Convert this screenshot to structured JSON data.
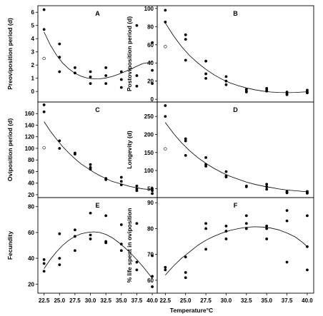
{
  "xlabel": "Temperature°C",
  "chart_data": [
    {
      "type": "scatter",
      "panel": "A",
      "ylabel": "Preoviposition period (d)",
      "xlim": [
        21.5,
        40.8
      ],
      "ylim": [
        -0.8,
        6.5
      ],
      "yticks": [
        0,
        1,
        2,
        3,
        4,
        5,
        6
      ],
      "points": [
        [
          22.5,
          6.2
        ],
        [
          22.5,
          4.7
        ],
        [
          25,
          3.6
        ],
        [
          25,
          2.6
        ],
        [
          25,
          1.5
        ],
        [
          27.5,
          1.8
        ],
        [
          27.5,
          1.4
        ],
        [
          30,
          1.5
        ],
        [
          30,
          1.1
        ],
        [
          30,
          0.6
        ],
        [
          32.5,
          1.8
        ],
        [
          32.5,
          1.2
        ],
        [
          32.5,
          0.6
        ],
        [
          35,
          1.5
        ],
        [
          35,
          0.9
        ],
        [
          35,
          0.3
        ],
        [
          37.5,
          5.0
        ],
        [
          37.5,
          1.2
        ],
        [
          37.5,
          0.4
        ],
        [
          40,
          3.7
        ],
        [
          40,
          1.6
        ],
        [
          40,
          0.6
        ]
      ],
      "open_points": [
        [
          22.5,
          2.5
        ]
      ],
      "curve": [
        [
          22.5,
          4.5
        ],
        [
          23.5,
          3.53
        ],
        [
          24.5,
          2.76
        ],
        [
          25.5,
          2.16
        ],
        [
          26.5,
          1.71
        ],
        [
          27.5,
          1.38
        ],
        [
          28.5,
          1.15
        ],
        [
          29.5,
          1.01
        ],
        [
          30.5,
          0.95
        ],
        [
          31.5,
          0.96
        ],
        [
          32.5,
          1.02
        ],
        [
          33.5,
          1.13
        ],
        [
          34.5,
          1.29
        ],
        [
          35.5,
          1.48
        ],
        [
          36.5,
          1.69
        ],
        [
          37.5,
          1.91
        ],
        [
          38.5,
          2.12
        ],
        [
          39.5,
          2.2
        ],
        [
          40,
          2.25
        ]
      ]
    },
    {
      "type": "scatter",
      "panel": "B",
      "ylabel": "Postoviposition period (d)",
      "xlim": [
        21.5,
        40.8
      ],
      "ylim": [
        -3,
        103
      ],
      "yticks": [
        0,
        20,
        40,
        60,
        80,
        100
      ],
      "points": [
        [
          22.5,
          98
        ],
        [
          22.5,
          85
        ],
        [
          25,
          71
        ],
        [
          25,
          66
        ],
        [
          25,
          43
        ],
        [
          27.5,
          42
        ],
        [
          27.5,
          28
        ],
        [
          27.5,
          23
        ],
        [
          30,
          25
        ],
        [
          30,
          20
        ],
        [
          30,
          16
        ],
        [
          32.5,
          11
        ],
        [
          32.5,
          9
        ],
        [
          32.5,
          8
        ],
        [
          35,
          12
        ],
        [
          35,
          10
        ],
        [
          35,
          9
        ],
        [
          37.5,
          8
        ],
        [
          37.5,
          6
        ],
        [
          37.5,
          5
        ],
        [
          40,
          10
        ],
        [
          40,
          8
        ],
        [
          40,
          7
        ]
      ],
      "open_points": [
        [
          22.5,
          58
        ]
      ],
      "curve": [
        [
          22.5,
          84
        ],
        [
          23.5,
          70
        ],
        [
          24.5,
          58
        ],
        [
          25.5,
          48
        ],
        [
          26.5,
          40
        ],
        [
          27.5,
          33
        ],
        [
          28.5,
          27
        ],
        [
          29.5,
          22
        ],
        [
          30.5,
          18
        ],
        [
          31.5,
          15
        ],
        [
          32.5,
          12.5
        ],
        [
          33.5,
          10.5
        ],
        [
          34.5,
          9
        ],
        [
          35.5,
          8
        ],
        [
          36.5,
          7.5
        ],
        [
          37.5,
          7.3
        ],
        [
          38.5,
          7.5
        ],
        [
          39.5,
          8
        ],
        [
          40,
          8.3
        ]
      ]
    },
    {
      "type": "scatter",
      "panel": "C",
      "ylabel": "Oviposition period (d)",
      "xlim": [
        21.5,
        40.8
      ],
      "ylim": [
        15,
        180
      ],
      "yticks": [
        20,
        40,
        60,
        80,
        100,
        120,
        140,
        160
      ],
      "points": [
        [
          22.5,
          175
        ],
        [
          22.5,
          163
        ],
        [
          25,
          113
        ],
        [
          25,
          100
        ],
        [
          27.5,
          92
        ],
        [
          27.5,
          90
        ],
        [
          30,
          72
        ],
        [
          30,
          67
        ],
        [
          30,
          64
        ],
        [
          32.5,
          48
        ],
        [
          32.5,
          46
        ],
        [
          35,
          50
        ],
        [
          35,
          43
        ],
        [
          35,
          37
        ],
        [
          37.5,
          35
        ],
        [
          37.5,
          30
        ],
        [
          37.5,
          27
        ],
        [
          40,
          30
        ],
        [
          40,
          27
        ],
        [
          40,
          22
        ]
      ],
      "open_points": [
        [
          22.5,
          101
        ]
      ],
      "curve": [
        [
          22.5,
          146
        ],
        [
          23.5,
          130
        ],
        [
          24.5,
          116
        ],
        [
          25.5,
          103
        ],
        [
          26.5,
          92
        ],
        [
          27.5,
          82
        ],
        [
          28.5,
          73
        ],
        [
          29.5,
          66
        ],
        [
          30.5,
          59
        ],
        [
          31.5,
          53
        ],
        [
          32.5,
          48
        ],
        [
          33.5,
          43
        ],
        [
          34.5,
          40
        ],
        [
          35.5,
          37
        ],
        [
          36.5,
          34
        ],
        [
          37.5,
          32
        ],
        [
          38.5,
          30
        ],
        [
          39.5,
          29
        ],
        [
          40,
          28.5
        ]
      ]
    },
    {
      "type": "scatter",
      "panel": "D",
      "ylabel": "Longevity (d)",
      "xlim": [
        21.5,
        40.8
      ],
      "ylim": [
        25,
        290
      ],
      "yticks": [
        50,
        100,
        150,
        200,
        250
      ],
      "points": [
        [
          22.5,
          280
        ],
        [
          22.5,
          250
        ],
        [
          25,
          188
        ],
        [
          25,
          182
        ],
        [
          25,
          142
        ],
        [
          27.5,
          136
        ],
        [
          27.5,
          117
        ],
        [
          27.5,
          112
        ],
        [
          30,
          97
        ],
        [
          30,
          85
        ],
        [
          30,
          82
        ],
        [
          32.5,
          57
        ],
        [
          32.5,
          55
        ],
        [
          35,
          62
        ],
        [
          35,
          55
        ],
        [
          35,
          48
        ],
        [
          37.5,
          42
        ],
        [
          37.5,
          40
        ],
        [
          37.5,
          38
        ],
        [
          40,
          42
        ],
        [
          40,
          39
        ],
        [
          40,
          37
        ]
      ],
      "open_points": [
        [
          22.5,
          160
        ]
      ],
      "curve": [
        [
          22.5,
          233
        ],
        [
          23.5,
          203
        ],
        [
          24.5,
          177
        ],
        [
          25.5,
          155
        ],
        [
          26.5,
          136
        ],
        [
          27.5,
          120
        ],
        [
          28.5,
          106
        ],
        [
          29.5,
          94
        ],
        [
          30.5,
          84
        ],
        [
          31.5,
          76
        ],
        [
          32.5,
          68
        ],
        [
          33.5,
          62
        ],
        [
          34.5,
          57
        ],
        [
          35.5,
          53
        ],
        [
          36.5,
          49
        ],
        [
          37.5,
          46
        ],
        [
          38.5,
          44
        ],
        [
          39.5,
          42
        ],
        [
          40,
          41
        ]
      ]
    },
    {
      "type": "scatter",
      "panel": "E",
      "ylabel": "Fecundity",
      "xlim": [
        21.5,
        40.8
      ],
      "ylim": [
        13,
        87
      ],
      "yticks": [
        20,
        40,
        60,
        80
      ],
      "points": [
        [
          22.5,
          39
        ],
        [
          22.5,
          36
        ],
        [
          22.5,
          30
        ],
        [
          25,
          59
        ],
        [
          25,
          40
        ],
        [
          25,
          35
        ],
        [
          27.5,
          62
        ],
        [
          27.5,
          57
        ],
        [
          27.5,
          46
        ],
        [
          30,
          75
        ],
        [
          30,
          58
        ],
        [
          30,
          55
        ],
        [
          32.5,
          73
        ],
        [
          32.5,
          53
        ],
        [
          32.5,
          52
        ],
        [
          35,
          66
        ],
        [
          35,
          51
        ],
        [
          35,
          46
        ],
        [
          37.5,
          67
        ],
        [
          37.5,
          37
        ],
        [
          37.5,
          31
        ],
        [
          40,
          42
        ],
        [
          40,
          26
        ],
        [
          40,
          18
        ]
      ],
      "open_points": [],
      "curve": [
        [
          22.5,
          32
        ],
        [
          23.5,
          39
        ],
        [
          24.5,
          45
        ],
        [
          25.5,
          50
        ],
        [
          26.5,
          54
        ],
        [
          27.5,
          57
        ],
        [
          28.5,
          59
        ],
        [
          29.5,
          60
        ],
        [
          30.5,
          60.5
        ],
        [
          31.5,
          60
        ],
        [
          32.5,
          58.5
        ],
        [
          33.5,
          56
        ],
        [
          34.5,
          52.5
        ],
        [
          35.5,
          48.5
        ],
        [
          36.5,
          44
        ],
        [
          37.5,
          39
        ],
        [
          38.5,
          33.5
        ],
        [
          39.5,
          27.5
        ],
        [
          40,
          24.5
        ]
      ]
    },
    {
      "type": "scatter",
      "panel": "F",
      "ylabel": "% life spent in oviposition",
      "xlim": [
        21.5,
        40.8
      ],
      "ylim": [
        55,
        92
      ],
      "yticks": [
        60,
        70,
        80,
        90
      ],
      "points": [
        [
          22.5,
          65
        ],
        [
          22.5,
          64
        ],
        [
          25,
          69
        ],
        [
          25,
          63
        ],
        [
          25,
          61
        ],
        [
          27.5,
          82
        ],
        [
          27.5,
          80
        ],
        [
          27.5,
          72
        ],
        [
          30,
          81
        ],
        [
          30,
          79
        ],
        [
          30,
          76
        ],
        [
          32.5,
          85
        ],
        [
          32.5,
          82
        ],
        [
          32.5,
          80
        ],
        [
          35,
          81
        ],
        [
          35,
          80
        ],
        [
          35,
          76
        ],
        [
          37.5,
          87
        ],
        [
          37.5,
          83
        ],
        [
          37.5,
          67
        ],
        [
          40,
          85
        ],
        [
          40,
          73
        ],
        [
          40,
          64
        ]
      ],
      "open_points": [],
      "curve": [
        [
          22.5,
          62
        ],
        [
          23.5,
          65.5
        ],
        [
          24.5,
          68.5
        ],
        [
          25.5,
          71
        ],
        [
          26.5,
          73.5
        ],
        [
          27.5,
          75.5
        ],
        [
          28.5,
          77
        ],
        [
          29.5,
          78.3
        ],
        [
          30.5,
          79.3
        ],
        [
          31.5,
          80
        ],
        [
          32.5,
          80.5
        ],
        [
          33.5,
          80.7
        ],
        [
          34.5,
          80.6
        ],
        [
          35.5,
          80.2
        ],
        [
          36.5,
          79.5
        ],
        [
          37.5,
          78.3
        ],
        [
          38.5,
          76.8
        ],
        [
          39.5,
          74.5
        ],
        [
          40,
          73
        ]
      ]
    }
  ],
  "xticks": [
    "22.5",
    "25.0",
    "27.5",
    "30.0",
    "32.5",
    "35.0",
    "37.5",
    "40.0"
  ]
}
